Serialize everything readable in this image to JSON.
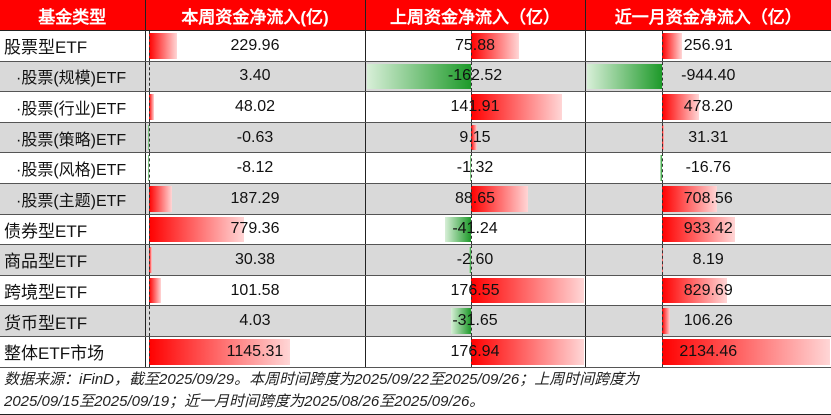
{
  "headers": [
    "基金类型",
    "本周资金净流入(亿)",
    "上周资金净流入（亿）",
    "近一月资金净流入（亿）"
  ],
  "rows": [
    {
      "name": "股票型ETF",
      "sub": false,
      "values": [
        229.96,
        75.88,
        256.91
      ],
      "labels": [
        "229.96",
        "75.88",
        "256.91"
      ]
    },
    {
      "name": "·股票(规模)ETF",
      "sub": true,
      "values": [
        3.4,
        -162.52,
        -944.4
      ],
      "labels": [
        "3.40",
        "-162.52",
        "-944.40"
      ]
    },
    {
      "name": "·股票(行业)ETF",
      "sub": true,
      "values": [
        48.02,
        141.91,
        478.2
      ],
      "labels": [
        "48.02",
        "141.91",
        "478.20"
      ]
    },
    {
      "name": "·股票(策略)ETF",
      "sub": true,
      "values": [
        -0.63,
        9.15,
        31.31
      ],
      "labels": [
        "-0.63",
        "9.15",
        "31.31"
      ]
    },
    {
      "name": "·股票(风格)ETF",
      "sub": true,
      "values": [
        -8.12,
        -1.32,
        -16.76
      ],
      "labels": [
        "-8.12",
        "-1.32",
        "-16.76"
      ]
    },
    {
      "name": "·股票(主题)ETF",
      "sub": true,
      "values": [
        187.29,
        88.65,
        708.56
      ],
      "labels": [
        "187.29",
        "88.65",
        "708.56"
      ]
    },
    {
      "name": "债券型ETF",
      "sub": false,
      "values": [
        779.36,
        -41.24,
        933.42
      ],
      "labels": [
        "779.36",
        "-41.24",
        "933.42"
      ]
    },
    {
      "name": "商品型ETF",
      "sub": false,
      "values": [
        30.38,
        -2.6,
        8.19
      ],
      "labels": [
        "30.38",
        "-2.60",
        "8.19"
      ]
    },
    {
      "name": "跨境型ETF",
      "sub": false,
      "values": [
        101.58,
        176.55,
        829.69
      ],
      "labels": [
        "101.58",
        "176.55",
        "829.69"
      ]
    },
    {
      "name": "货币型ETF",
      "sub": false,
      "values": [
        4.03,
        -31.65,
        106.26
      ],
      "labels": [
        "4.03",
        "-31.65",
        "106.26"
      ]
    },
    {
      "name": "整体ETF市场",
      "sub": false,
      "values": [
        1145.31,
        176.94,
        2134.46
      ],
      "labels": [
        "1145.31",
        "176.94",
        "2134.46"
      ]
    }
  ],
  "colors": {
    "header_bg": "#ff0000",
    "positive_bar": "#ff0000",
    "negative_bar": "#1e9a2a",
    "alt_row": "#d9d9d9"
  },
  "footnote_lines": [
    "数据来源：iFinD，截至2025/09/29。本周时间跨度为2025/09/22至2025/09/26；上周时间跨度为",
    "2025/09/15至2025/09/19；近一月时间跨度为2025/08/26至2025/09/26。"
  ]
}
